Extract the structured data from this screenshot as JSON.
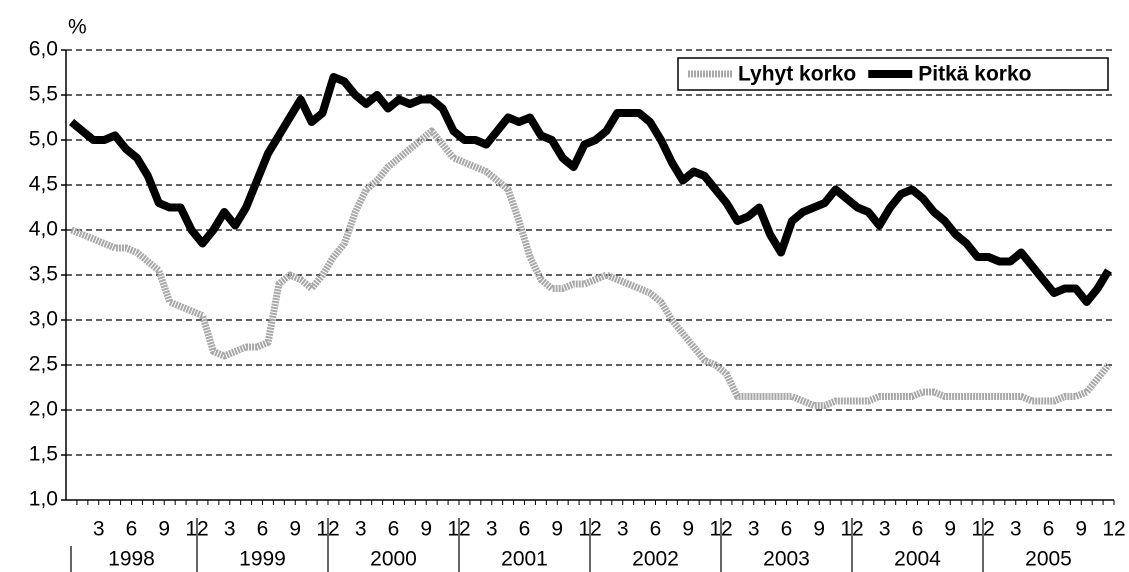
{
  "chart_data": {
    "type": "line",
    "y_label": "%",
    "categories": [
      null,
      null,
      "3",
      null,
      null,
      "6",
      null,
      null,
      "9",
      null,
      null,
      "12",
      null,
      null,
      "3",
      null,
      null,
      "6",
      null,
      null,
      "9",
      null,
      null,
      "12",
      null,
      null,
      "3",
      null,
      null,
      "6",
      null,
      null,
      "9",
      null,
      null,
      "12",
      null,
      null,
      "3",
      null,
      null,
      "6",
      null,
      null,
      "9",
      null,
      null,
      "12",
      null,
      null,
      "3",
      null,
      null,
      "6",
      null,
      null,
      "9",
      null,
      null,
      "12",
      null,
      null,
      "3",
      null,
      null,
      "6",
      null,
      null,
      "9",
      null,
      null,
      "12",
      null,
      null,
      "3",
      null,
      null,
      "6",
      null,
      null,
      "9",
      null,
      null,
      "12",
      null,
      null,
      "3",
      null,
      null,
      "6",
      null,
      null,
      "9",
      null,
      null,
      "12"
    ],
    "year_labels": [
      "1998",
      "1999",
      "2000",
      "2001",
      "2002",
      "2003",
      "2004",
      "2005"
    ],
    "series": [
      {
        "name": "Lyhyt korko",
        "color": "#a8a8a8",
        "values": [
          4.0,
          3.95,
          3.9,
          3.85,
          3.8,
          3.8,
          3.75,
          3.65,
          3.55,
          3.2,
          3.15,
          3.1,
          3.05,
          2.65,
          2.6,
          2.65,
          2.7,
          2.7,
          2.75,
          3.4,
          3.5,
          3.45,
          3.35,
          3.5,
          3.7,
          3.85,
          4.2,
          4.45,
          4.55,
          4.7,
          4.8,
          4.9,
          5.0,
          5.1,
          4.95,
          4.8,
          4.75,
          4.7,
          4.65,
          4.55,
          4.45,
          4.1,
          3.7,
          3.45,
          3.35,
          3.35,
          3.4,
          3.4,
          3.45,
          3.5,
          3.45,
          3.4,
          3.35,
          3.3,
          3.2,
          3.0,
          2.85,
          2.7,
          2.55,
          2.5,
          2.4,
          2.15,
          2.15,
          2.15,
          2.15,
          2.15,
          2.15,
          2.1,
          2.05,
          2.05,
          2.1,
          2.1,
          2.1,
          2.1,
          2.15,
          2.15,
          2.15,
          2.15,
          2.2,
          2.2,
          2.15,
          2.15,
          2.15,
          2.15,
          2.15,
          2.15,
          2.15,
          2.15,
          2.1,
          2.1,
          2.1,
          2.15,
          2.15,
          2.2,
          2.35,
          2.5
        ]
      },
      {
        "name": "Pitkä korko",
        "color": "#000000",
        "values": [
          5.2,
          5.1,
          5.0,
          5.0,
          5.05,
          4.9,
          4.8,
          4.6,
          4.3,
          4.25,
          4.25,
          4.0,
          3.85,
          4.0,
          4.2,
          4.05,
          4.25,
          4.55,
          4.85,
          5.05,
          5.25,
          5.45,
          5.2,
          5.3,
          5.7,
          5.65,
          5.5,
          5.4,
          5.5,
          5.35,
          5.45,
          5.4,
          5.45,
          5.45,
          5.35,
          5.1,
          5.0,
          5.0,
          4.95,
          5.1,
          5.25,
          5.2,
          5.25,
          5.05,
          5.0,
          4.8,
          4.7,
          4.95,
          5.0,
          5.1,
          5.3,
          5.3,
          5.3,
          5.2,
          5.0,
          4.75,
          4.55,
          4.65,
          4.6,
          4.45,
          4.3,
          4.1,
          4.15,
          4.25,
          3.95,
          3.75,
          4.1,
          4.2,
          4.25,
          4.3,
          4.45,
          4.35,
          4.25,
          4.2,
          4.05,
          4.25,
          4.4,
          4.45,
          4.35,
          4.2,
          4.1,
          3.95,
          3.85,
          3.7,
          3.7,
          3.65,
          3.65,
          3.75,
          3.6,
          3.45,
          3.3,
          3.35,
          3.35,
          3.2,
          3.35,
          3.55
        ]
      }
    ],
    "ylim": [
      1,
      6
    ],
    "yticks": [
      {
        "value": 1,
        "label": "1,0"
      },
      {
        "value": 1.5,
        "label": "1,5"
      },
      {
        "value": 2,
        "label": "2,0"
      },
      {
        "value": 2.5,
        "label": "2,5"
      },
      {
        "value": 3,
        "label": "3,0"
      },
      {
        "value": 3.5,
        "label": "3,5"
      },
      {
        "value": 4,
        "label": "4,0"
      },
      {
        "value": 4.5,
        "label": "4,5"
      },
      {
        "value": 5,
        "label": "5,0"
      },
      {
        "value": 5.5,
        "label": "5,5"
      },
      {
        "value": 6,
        "label": "6,0"
      }
    ],
    "grid": true,
    "legend": "top-right"
  }
}
